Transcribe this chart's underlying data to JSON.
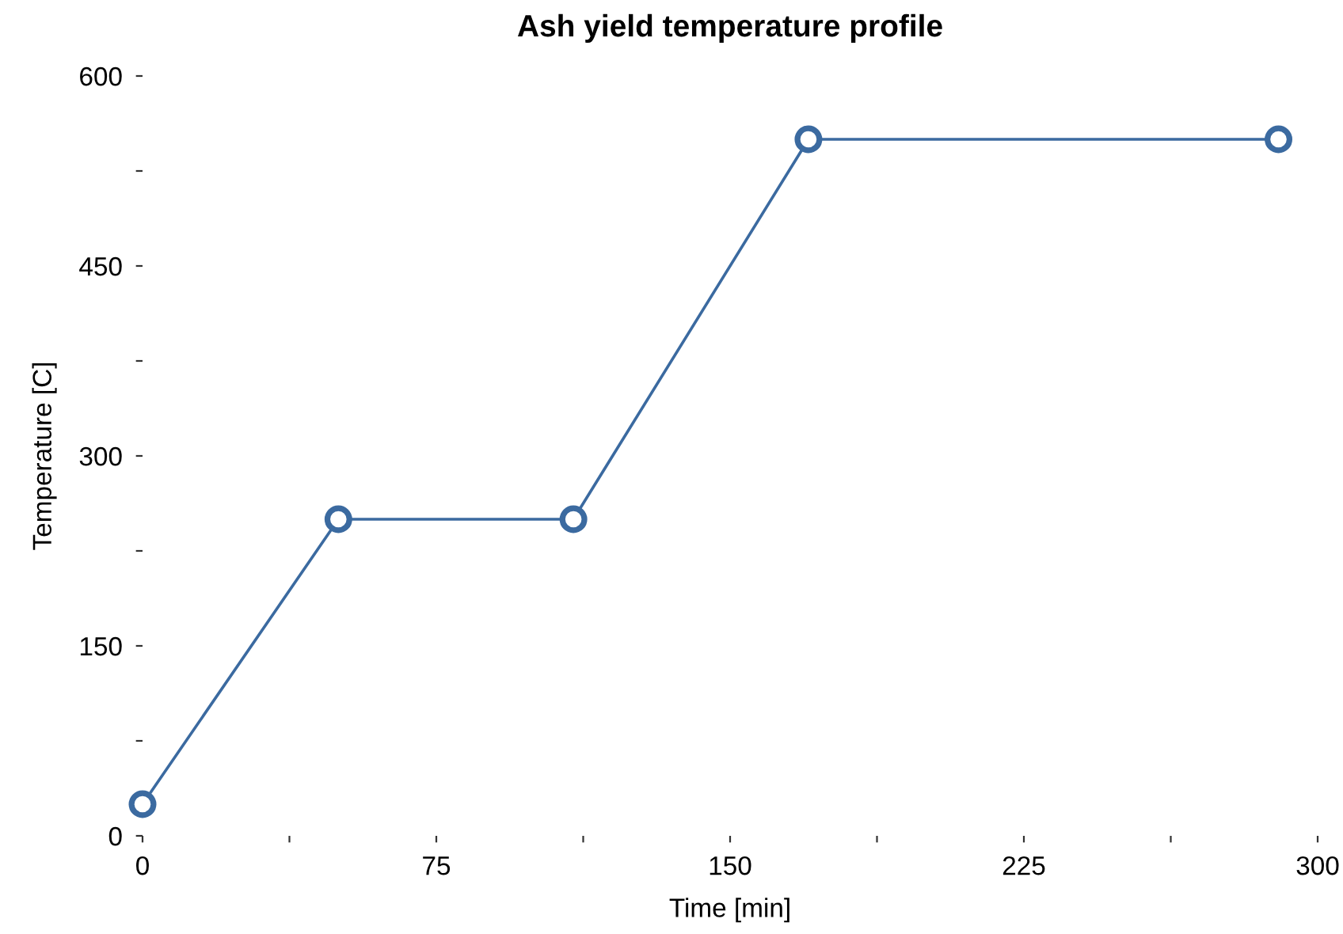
{
  "chart_data": {
    "type": "line",
    "title": "Ash yield temperature profile",
    "xlabel": "Time [min]",
    "ylabel": "Temperature [C]",
    "x": [
      0,
      50,
      110,
      170,
      290
    ],
    "series": [
      {
        "color": "#3b6aa0",
        "values": [
          25,
          250,
          250,
          550,
          550
        ]
      }
    ],
    "xlim": [
      0,
      300
    ],
    "ylim": [
      0,
      600
    ],
    "xticks": [
      0,
      {
        "value": 37.5,
        "label": null
      },
      75,
      {
        "value": 112.5,
        "label": null
      },
      150,
      {
        "value": 187.5,
        "label": null
      },
      225,
      {
        "value": 262.5,
        "label": null
      },
      300
    ],
    "yticks": [
      0,
      {
        "value": 75,
        "label": null
      },
      150,
      {
        "value": 225,
        "label": null
      },
      300,
      {
        "value": 375,
        "label": null
      },
      450,
      {
        "value": 525,
        "label": null
      },
      600
    ],
    "marker": "circle",
    "line_style": "solid",
    "grid": false
  }
}
